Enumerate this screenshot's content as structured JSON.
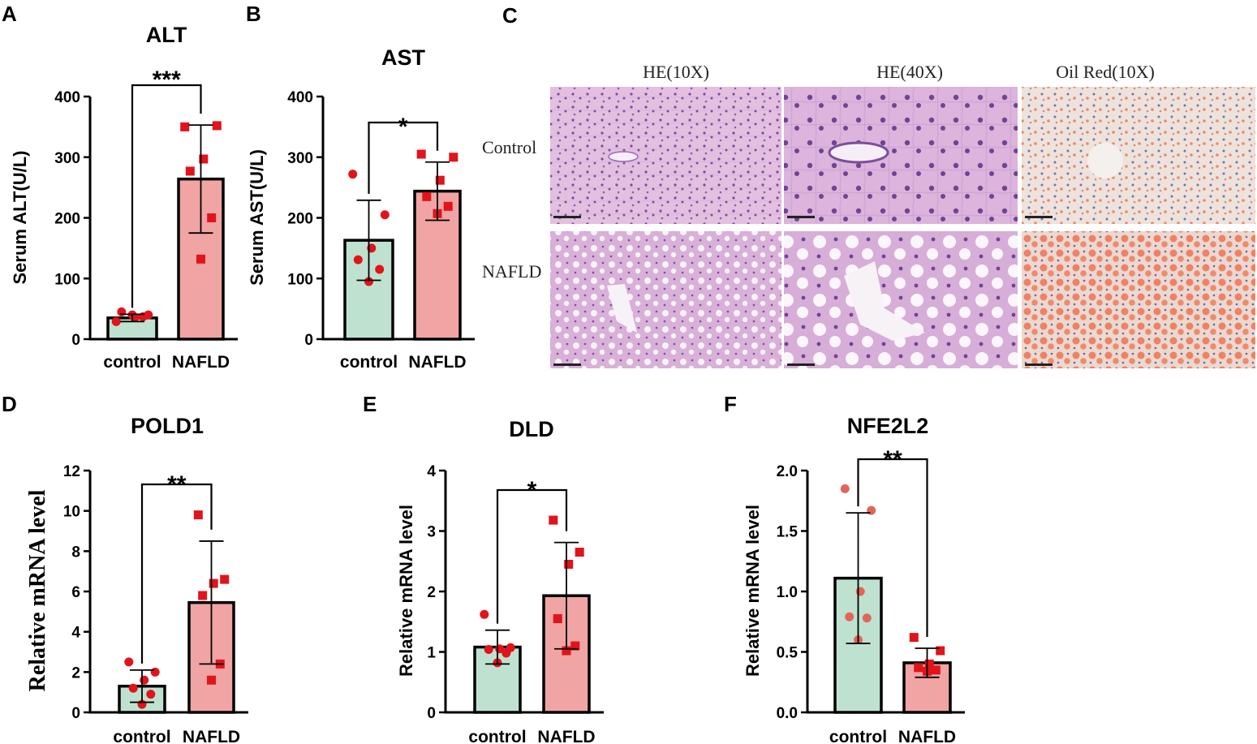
{
  "panel_letters": [
    "A",
    "B",
    "C",
    "D",
    "E",
    "F"
  ],
  "histology": {
    "columns": [
      "HE(10X)",
      "HE(40X)",
      "Oil Red(10X)"
    ],
    "rows": [
      "Control",
      "NAFLD"
    ]
  },
  "chart_data": [
    {
      "type": "bar",
      "panel": "A",
      "title": "ALT",
      "ylabel": "Serum ALT(U/L)",
      "categories": [
        "control",
        "NAFLD"
      ],
      "values": [
        35,
        264
      ],
      "error": [
        6,
        89
      ],
      "points": [
        [
          29,
          40,
          36,
          45,
          37,
          40
        ],
        [
          350,
          352,
          297,
          277,
          200,
          132
        ]
      ],
      "ylim": [
        0,
        400
      ],
      "yticks": [
        "0",
        "100",
        "200",
        "300",
        "400"
      ],
      "significance": "***",
      "colors": {
        "control": "#bfe2d0",
        "NAFLD": "#f0a4a4",
        "points": "#e0141a"
      }
    },
    {
      "type": "bar",
      "panel": "B",
      "title": "AST",
      "ylabel": "Serum AST(U/L)",
      "categories": [
        "control",
        "NAFLD"
      ],
      "values": [
        163,
        244
      ],
      "error": [
        66,
        48
      ],
      "points": [
        [
          272,
          205,
          150,
          131,
          115,
          95
        ],
        [
          305,
          300,
          262,
          235,
          219,
          207
        ]
      ],
      "ylim": [
        0,
        400
      ],
      "yticks": [
        "0",
        "100",
        "200",
        "300",
        "400"
      ],
      "significance": "*",
      "colors": {
        "control": "#bfe2d0",
        "NAFLD": "#f0a4a4",
        "points": "#e0141a"
      }
    },
    {
      "type": "bar",
      "panel": "D",
      "title": "POLD1",
      "ylabel": "Relative mRNA  level",
      "categories": [
        "control",
        "NAFLD"
      ],
      "values": [
        1.3,
        5.45
      ],
      "error": [
        0.8,
        3.05
      ],
      "points": [
        [
          2.5,
          2.0,
          1.6,
          1.2,
          0.9,
          0.4
        ],
        [
          9.8,
          6.6,
          6.4,
          5.8,
          2.4,
          1.6
        ]
      ],
      "ylim": [
        0,
        12
      ],
      "yticks": [
        "0",
        "2",
        "4",
        "6",
        "8",
        "10",
        "12"
      ],
      "significance": "**",
      "colors": {
        "control": "#bfe2d0",
        "NAFLD": "#f0a4a4",
        "points": "#e0141a"
      }
    },
    {
      "type": "bar",
      "panel": "E",
      "title": "DLD",
      "ylabel": "Relative mRNA level",
      "categories": [
        "control",
        "NAFLD"
      ],
      "values": [
        1.08,
        1.93
      ],
      "error": [
        0.28,
        0.88
      ],
      "points": [
        [
          1.62,
          1.07,
          1.05,
          1.04,
          0.98,
          0.82
        ],
        [
          3.18,
          2.65,
          2.45,
          1.55,
          1.1,
          1.02
        ]
      ],
      "ylim": [
        0,
        4
      ],
      "yticks": [
        "0",
        "1",
        "2",
        "3",
        "4"
      ],
      "significance": "*",
      "colors": {
        "control": "#bfe2d0",
        "NAFLD": "#f0a4a4",
        "points": "#e0141a"
      }
    },
    {
      "type": "bar",
      "panel": "F",
      "title": "NFE2L2",
      "ylabel": "Relative mRNA level",
      "categories": [
        "control",
        "NAFLD"
      ],
      "values": [
        1.11,
        0.41
      ],
      "error": [
        0.54,
        0.12
      ],
      "points": [
        [
          1.85,
          1.67,
          1.0,
          0.79,
          0.78,
          0.6
        ],
        [
          0.62,
          0.51,
          0.4,
          0.37,
          0.35,
          0.34
        ]
      ],
      "ylim": [
        0,
        2.0
      ],
      "yticks": [
        "0.0",
        "0.5",
        "1.0",
        "1.5",
        "2.0"
      ],
      "significance": "**",
      "colors": {
        "control": "#bfe2d0",
        "NAFLD": "#f0a4a4",
        "points": "#e0141a",
        "points_control": "#e2655a"
      }
    }
  ]
}
